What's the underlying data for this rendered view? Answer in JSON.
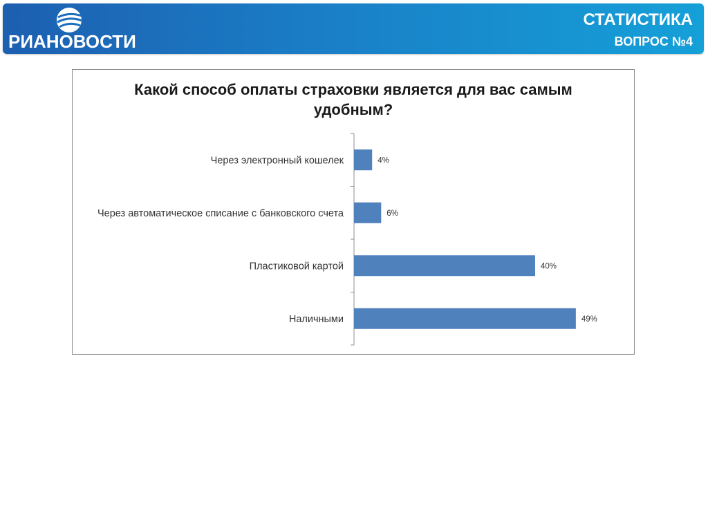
{
  "header": {
    "brand": "РИАНОВОСТИ",
    "title": "СТАТИСТИКА",
    "subtitle": "ВОПРОС №4",
    "logo_icon": "ria-globe-icon",
    "colors": {
      "gradient_start": "#1d5fb0",
      "gradient_end": "#15a0d8"
    }
  },
  "chart_data": {
    "type": "bar",
    "orientation": "horizontal",
    "title_lines": [
      "Какой способ оплаты страховки является для вас самым",
      "удобным?"
    ],
    "categories": [
      "Через электронный кошелек",
      "Через автоматическое списание с банковского счета",
      "Пластиковой картой",
      "Наличными"
    ],
    "values": [
      4,
      6,
      40,
      49
    ],
    "value_labels": [
      "4%",
      "6%",
      "40%",
      "49%"
    ],
    "unit": "%",
    "xlim": [
      0,
      62
    ],
    "bar_color": "#4f81bd",
    "grid": false,
    "legend": "none"
  }
}
